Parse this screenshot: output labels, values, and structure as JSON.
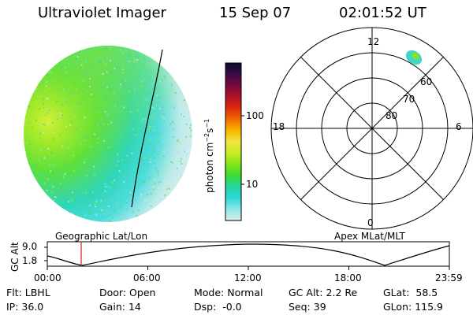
{
  "header": {
    "instrument": "Ultraviolet Imager",
    "date": "15 Sep 07",
    "time": "02:01:52 UT"
  },
  "imager": {
    "label": "Geographic Lat/Lon"
  },
  "colorbar": {
    "unit_main": "photon cm",
    "unit_exp1": "−2",
    "unit_s": "s",
    "unit_exp2": "−1",
    "ticks": [
      "100",
      "10"
    ],
    "colors": [
      "#0a0a2a",
      "#3a0a4a",
      "#7a0a3a",
      "#b0102a",
      "#e02a10",
      "#f06a00",
      "#f7b800",
      "#f2e640",
      "#c7ec22",
      "#86e41a",
      "#3ddc33",
      "#22d6a0",
      "#30d8d8",
      "#8ee8e8",
      "#d5efef"
    ]
  },
  "polar": {
    "label": "Apex MLat/MLT",
    "mlt_labels": {
      "top": "12",
      "left": "18",
      "right": "6",
      "bottom": "0"
    },
    "lat_labels": [
      "60",
      "70",
      "80"
    ]
  },
  "alt_plot": {
    "y_title": "GC Alt",
    "y_ticks": [
      "9.0",
      "1.8"
    ],
    "x_ticks": [
      "00:00",
      "06:00",
      "12:00",
      "18:00",
      "23:59"
    ],
    "marker_time": "02:01:52"
  },
  "footer": {
    "row1": [
      {
        "label": "Flt:",
        "value": "LBHL"
      },
      {
        "label": "Door:",
        "value": "Open"
      },
      {
        "label": "Mode:",
        "value": "Normal"
      },
      {
        "label": "GC Alt:",
        "value": "2.2 Re"
      },
      {
        "label": "GLat:",
        "value": "58.5"
      }
    ],
    "row2": [
      {
        "label": "IP:",
        "value": "36.0"
      },
      {
        "label": "Gain:",
        "value": "14"
      },
      {
        "label": "Dsp:",
        "value": "-0.0"
      },
      {
        "label": "Seq:",
        "value": "39"
      },
      {
        "label": "GLon:",
        "value": "115.9"
      }
    ]
  },
  "colors": {
    "marker": "#d02020",
    "disk_edge": "#8ee8e8"
  }
}
